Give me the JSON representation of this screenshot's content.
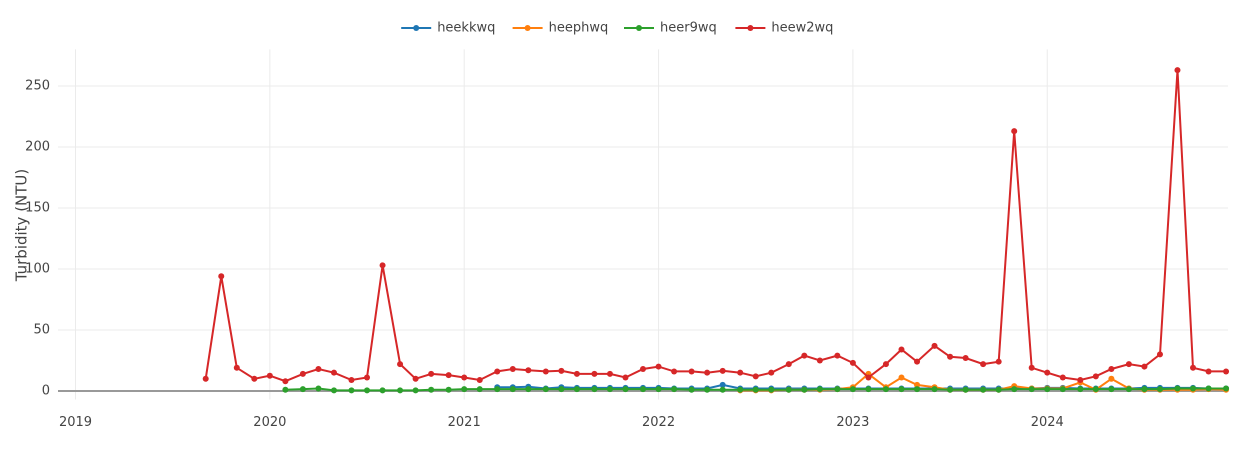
{
  "chart_data": {
    "type": "line",
    "y_label": "Turbidity (NTU)",
    "xlim": [
      2018.91,
      2024.93
    ],
    "xticks": [
      2019,
      2020,
      2021,
      2022,
      2023,
      2024
    ],
    "ylim": [
      -7,
      280
    ],
    "yticks": [
      0,
      50,
      100,
      150,
      200,
      250
    ],
    "grid": true,
    "legend": "top",
    "series": [
      {
        "name": "heekkwq",
        "color": "#1f77b4",
        "x": [
          2021.17,
          2021.25,
          2021.33,
          2021.42,
          2021.5,
          2021.58,
          2021.67,
          2021.75,
          2021.83,
          2021.92,
          2022,
          2022.08,
          2022.17,
          2022.25,
          2022.33,
          2022.42,
          2022.5,
          2022.58,
          2022.67,
          2022.75,
          2022.83,
          2022.92,
          2023,
          2023.08,
          2023.17,
          2023.25,
          2023.33,
          2023.42,
          2023.5,
          2023.58,
          2023.67,
          2023.75,
          2023.83,
          2023.92,
          2024,
          2024.08,
          2024.17,
          2024.25,
          2024.33,
          2024.42,
          2024.5,
          2024.58,
          2024.67,
          2024.75,
          2024.83,
          2024.92
        ],
        "values": [
          3,
          3,
          3.5,
          2,
          3,
          2.5,
          2.5,
          2.5,
          2.5,
          2.5,
          2.5,
          2,
          2,
          2,
          5,
          2,
          2,
          2,
          2,
          2,
          2,
          2,
          2,
          2,
          2,
          2,
          2,
          2,
          2,
          2,
          2,
          2,
          2,
          2,
          2.5,
          2.5,
          2,
          2,
          2,
          2,
          2.5,
          2.5,
          2.5,
          2.5,
          2,
          2
        ]
      },
      {
        "name": "heephwq",
        "color": "#ff7f0e",
        "x": [
          2022.42,
          2022.5,
          2022.58,
          2022.67,
          2022.75,
          2022.83,
          2022.92,
          2023,
          2023.08,
          2023.17,
          2023.25,
          2023.33,
          2023.42,
          2023.5,
          2023.58,
          2023.67,
          2023.75,
          2023.83,
          2023.92,
          2024,
          2024.08,
          2024.17,
          2024.25,
          2024.33,
          2024.42,
          2024.5,
          2024.58,
          2024.67,
          2024.75,
          2024.83,
          2024.92
        ],
        "values": [
          0.5,
          0.5,
          0.5,
          1,
          1,
          1,
          1.5,
          3,
          14,
          3,
          11,
          5,
          3,
          1,
          1,
          1,
          1,
          4,
          2,
          2,
          2,
          7,
          1,
          10,
          2,
          1,
          1,
          1,
          1,
          1.5,
          1
        ]
      },
      {
        "name": "heer9wq",
        "color": "#2ca02c",
        "x": [
          2020.08,
          2020.17,
          2020.25,
          2020.33,
          2020.42,
          2020.5,
          2020.58,
          2020.67,
          2020.75,
          2020.83,
          2020.92,
          2021,
          2021.08,
          2021.17,
          2021.25,
          2021.33,
          2021.42,
          2021.5,
          2021.58,
          2021.67,
          2021.75,
          2021.83,
          2021.92,
          2022,
          2022.08,
          2022.17,
          2022.25,
          2022.33,
          2022.42,
          2022.5,
          2022.58,
          2022.67,
          2022.75,
          2022.83,
          2022.92,
          2023,
          2023.08,
          2023.17,
          2023.25,
          2023.33,
          2023.42,
          2023.5,
          2023.58,
          2023.67,
          2023.75,
          2023.83,
          2023.92,
          2024,
          2024.08,
          2024.17,
          2024.25,
          2024.33,
          2024.42,
          2024.5,
          2024.58,
          2024.67,
          2024.75,
          2024.83,
          2024.92
        ],
        "values": [
          1,
          1.5,
          2,
          0.5,
          0.5,
          0.5,
          0.5,
          0.5,
          0.5,
          1,
          1,
          1.5,
          1.5,
          1.5,
          1.5,
          1.5,
          1.5,
          1.5,
          1.5,
          1.5,
          1.5,
          1.5,
          1.5,
          1.5,
          1.5,
          1,
          1,
          1,
          1,
          1,
          1,
          1,
          1,
          1.5,
          1.5,
          1.5,
          1.5,
          1.5,
          1.5,
          1.5,
          1.5,
          1,
          1,
          1,
          1,
          1.5,
          1.5,
          1.5,
          1.5,
          1.5,
          1.5,
          1.5,
          1.5,
          1.5,
          1.5,
          2,
          2,
          2,
          2
        ]
      },
      {
        "name": "heew2wq",
        "color": "#d62728",
        "x": [
          2019.67,
          2019.75,
          2019.83,
          2019.92,
          2020,
          2020.08,
          2020.17,
          2020.25,
          2020.33,
          2020.42,
          2020.5,
          2020.58,
          2020.67,
          2020.75,
          2020.83,
          2020.92,
          2021,
          2021.08,
          2021.17,
          2021.25,
          2021.33,
          2021.42,
          2021.5,
          2021.58,
          2021.67,
          2021.75,
          2021.83,
          2021.92,
          2022,
          2022.08,
          2022.17,
          2022.25,
          2022.33,
          2022.42,
          2022.5,
          2022.58,
          2022.67,
          2022.75,
          2022.83,
          2022.92,
          2023,
          2023.08,
          2023.17,
          2023.25,
          2023.33,
          2023.42,
          2023.5,
          2023.58,
          2023.67,
          2023.75,
          2023.83,
          2023.92,
          2024,
          2024.08,
          2024.17,
          2024.25,
          2024.33,
          2024.42,
          2024.5,
          2024.58,
          2024.67,
          2024.75,
          2024.83,
          2024.92
        ],
        "values": [
          10,
          94,
          19,
          10,
          12.5,
          8,
          14,
          18,
          15,
          9,
          11,
          103,
          22,
          10,
          14,
          13,
          11,
          9,
          16,
          18,
          17,
          16,
          16.5,
          14,
          14,
          14,
          11,
          18,
          20,
          16,
          16,
          15,
          16.5,
          15,
          12,
          15,
          22,
          29,
          25,
          29,
          23,
          11,
          22,
          34,
          24,
          37,
          28,
          27,
          22,
          24,
          213,
          19,
          15,
          11,
          9,
          12,
          18,
          22,
          20,
          30,
          263,
          19,
          16,
          16
        ]
      }
    ]
  }
}
